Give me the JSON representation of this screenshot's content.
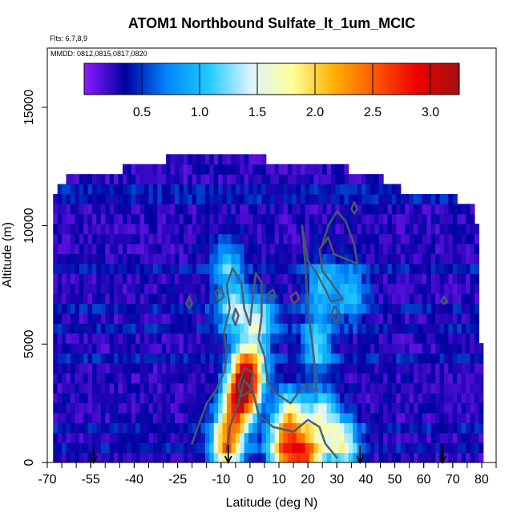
{
  "chart_data": {
    "type": "heatmap",
    "title": "ATOM1 Northbound Sulfate_lt_1um_MCIC",
    "annotations": {
      "flights": "Flts: 6,7,8,9",
      "dates": "MMDD: 0812,0815,0817,0820"
    },
    "xlabel": "Latitude (deg N)",
    "ylabel": "Altitude (m)",
    "x_ticks": [
      "-70",
      "-55",
      "-40",
      "-25",
      "-10",
      "0",
      "10",
      "20",
      "30",
      "40",
      "50",
      "60",
      "70",
      "80"
    ],
    "y_ticks": [
      "0",
      "5000",
      "10000",
      "15000"
    ],
    "xlim": [
      -70,
      85
    ],
    "ylim": [
      0,
      17500
    ],
    "colorbar": {
      "range": [
        0,
        3.25
      ],
      "ticks": [
        "0.5",
        "1.0",
        "1.5",
        "2.0",
        "2.5",
        "3.0"
      ],
      "colors": [
        "#8c1aff",
        "#0000a0",
        "#0088ff",
        "#22ccff",
        "#ddf4ff",
        "#ffff99",
        "#ffb000",
        "#ff5500",
        "#ee0000",
        "#a01010"
      ]
    },
    "layer_top_altitude_by_latitude": [
      [
        -68,
        10500
      ],
      [
        -67,
        11200
      ],
      [
        -63,
        11800
      ],
      [
        -38,
        12300
      ],
      [
        -20,
        12900
      ],
      [
        30,
        12300
      ],
      [
        45,
        11800
      ],
      [
        55,
        11200
      ],
      [
        72,
        10900
      ],
      [
        78,
        10500
      ],
      [
        79,
        8000
      ],
      [
        80,
        4000
      ],
      [
        81,
        500
      ]
    ],
    "hotspots": [
      {
        "lat": -8,
        "alt": 700,
        "value": 1.9
      },
      {
        "lat": -5,
        "alt": 2200,
        "value": 1.6
      },
      {
        "lat": -2,
        "alt": 3200,
        "value": 2.4
      },
      {
        "lat": 0,
        "alt": 4200,
        "value": 1.4
      },
      {
        "lat": -6,
        "alt": 6500,
        "value": 1.0
      },
      {
        "lat": -8,
        "alt": 8500,
        "value": 0.7
      },
      {
        "lat": 3,
        "alt": 6000,
        "value": 1.0
      },
      {
        "lat": 14,
        "alt": 2000,
        "value": 1.5
      },
      {
        "lat": 12,
        "alt": 500,
        "value": 1.9
      },
      {
        "lat": 20,
        "alt": 300,
        "value": 2.0
      },
      {
        "lat": 25,
        "alt": 2000,
        "value": 1.1
      },
      {
        "lat": 23,
        "alt": 5000,
        "value": 0.9
      },
      {
        "lat": 25,
        "alt": 7500,
        "value": 0.8
      },
      {
        "lat": 32,
        "alt": 800,
        "value": 1.3
      },
      {
        "lat": 35,
        "alt": 7200,
        "value": 0.7
      }
    ],
    "contours": [
      [
        [
          -20,
          800
        ],
        [
          -18,
          1500
        ],
        [
          -15,
          2500
        ],
        [
          -12,
          3000
        ],
        [
          -9,
          3800
        ],
        [
          -8,
          4500
        ],
        [
          -9,
          5500
        ],
        [
          -7,
          6500
        ],
        [
          -8,
          7500
        ],
        [
          -6,
          8200
        ],
        [
          -3,
          7600
        ],
        [
          -2,
          6500
        ],
        [
          0,
          5800
        ],
        [
          1,
          7000
        ],
        [
          2,
          8000
        ],
        [
          4,
          7600
        ],
        [
          4,
          6200
        ],
        [
          3,
          5200
        ],
        [
          5,
          4500
        ],
        [
          6,
          3500
        ],
        [
          8,
          3000
        ],
        [
          14,
          2500
        ],
        [
          17,
          3000
        ],
        [
          20,
          3300
        ],
        [
          23,
          3000
        ],
        [
          22,
          4500
        ],
        [
          20,
          6500
        ],
        [
          19,
          8500
        ],
        [
          18,
          10000
        ],
        [
          20,
          8500
        ],
        [
          23,
          8000
        ],
        [
          26,
          7300
        ],
        [
          28,
          6800
        ],
        [
          32,
          6900
        ],
        [
          28,
          7600
        ],
        [
          25,
          8100
        ],
        [
          24,
          9000
        ],
        [
          27,
          9500
        ],
        [
          29,
          8800
        ],
        [
          33,
          8600
        ],
        [
          37,
          8400
        ],
        [
          36,
          9200
        ],
        [
          33,
          10200
        ],
        [
          30,
          10600
        ],
        [
          27,
          10000
        ],
        [
          25,
          9200
        ]
      ],
      [
        [
          -8,
          500
        ],
        [
          -7,
          1500
        ],
        [
          -4,
          2500
        ],
        [
          -2,
          3500
        ],
        [
          1,
          3000
        ],
        [
          3,
          2000
        ],
        [
          8,
          1500
        ],
        [
          15,
          1300
        ],
        [
          20,
          1800
        ],
        [
          24,
          1500
        ],
        [
          26,
          800
        ],
        [
          30,
          200
        ]
      ],
      [
        [
          -4,
          3200
        ],
        [
          -2,
          4000
        ],
        [
          1,
          3800
        ],
        [
          0,
          3000
        ],
        [
          -3,
          2800
        ],
        [
          -4,
          3200
        ]
      ],
      [
        [
          -11,
          6800
        ],
        [
          -9,
          7000
        ],
        [
          -10,
          7400
        ],
        [
          -12,
          7200
        ],
        [
          -11,
          6800
        ]
      ],
      [
        [
          -5,
          5800
        ],
        [
          -4,
          6200
        ],
        [
          -5,
          6500
        ],
        [
          -6,
          6100
        ],
        [
          -5,
          5800
        ]
      ],
      [
        [
          28,
          6200
        ],
        [
          30,
          5900
        ],
        [
          31,
          6300
        ],
        [
          29,
          6600
        ],
        [
          28,
          6200
        ]
      ],
      [
        [
          7,
          6800
        ],
        [
          9,
          7000
        ],
        [
          8,
          7300
        ],
        [
          6,
          7100
        ],
        [
          7,
          6800
        ]
      ],
      [
        [
          15,
          6700
        ],
        [
          17,
          6900
        ],
        [
          16,
          7200
        ],
        [
          14,
          7000
        ],
        [
          15,
          6700
        ]
      ],
      [
        [
          -21,
          6500
        ],
        [
          -20,
          6700
        ],
        [
          -21,
          7000
        ],
        [
          -22,
          6700
        ],
        [
          -21,
          6500
        ]
      ],
      [
        [
          36,
          10500
        ],
        [
          37,
          10700
        ],
        [
          36,
          11000
        ],
        [
          35,
          10700
        ],
        [
          36,
          10500
        ]
      ],
      [
        [
          67,
          6700
        ],
        [
          68,
          6800
        ],
        [
          67,
          7000
        ],
        [
          66,
          6800
        ],
        [
          67,
          6700
        ]
      ]
    ],
    "arrows_at_latitude": [
      -54,
      -7.5,
      38,
      66.5
    ]
  }
}
